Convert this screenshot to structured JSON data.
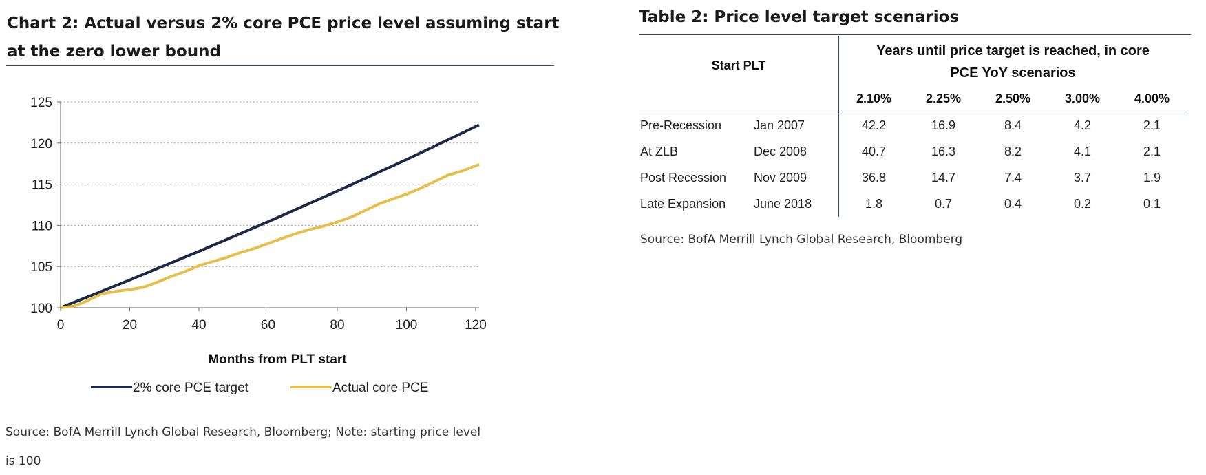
{
  "left_panel": {
    "title_line1": "Chart 2: Actual versus 2% core PCE price level assuming start",
    "title_line2": "at the zero lower bound",
    "source_line1": "Source: BofA Merrill Lynch Global Research, Bloomberg; Note: starting price level",
    "source_line2": "is 100"
  },
  "right_panel": {
    "title": "Table 2: Price level target scenarios",
    "header_start": "Start PLT",
    "header_group_line1": "Years until price target is reached, in core",
    "header_group_line2": "PCE YoY scenarios",
    "scenarios": [
      "2.10%",
      "2.25%",
      "2.50%",
      "3.00%",
      "4.00%"
    ],
    "rows": [
      {
        "name": "Pre-Recession",
        "date": "Jan 2007",
        "values": [
          "42.2",
          "16.9",
          "8.4",
          "4.2",
          "2.1"
        ]
      },
      {
        "name": "At ZLB",
        "date": "Dec 2008",
        "values": [
          "40.7",
          "16.3",
          "8.2",
          "4.1",
          "2.1"
        ]
      },
      {
        "name": "Post Recession",
        "date": "Nov 2009",
        "values": [
          "36.8",
          "14.7",
          "7.4",
          "3.7",
          "1.9"
        ]
      },
      {
        "name": "Late Expansion",
        "date": "June 2018",
        "values": [
          "1.8",
          "0.7",
          "0.4",
          "0.2",
          "0.1"
        ]
      }
    ],
    "source": "Source: BofA Merrill Lynch Global Research, Bloomberg"
  },
  "chart_data": {
    "type": "line",
    "title": "Chart 2: Actual versus 2% core PCE price level assuming start at the zero lower bound",
    "xlabel": "Months from PLT start",
    "ylabel": "",
    "xlim": [
      0,
      121
    ],
    "ylim": [
      100,
      125
    ],
    "xticks": [
      0,
      20,
      40,
      60,
      80,
      100,
      120
    ],
    "yticks": [
      100,
      105,
      110,
      115,
      120,
      125
    ],
    "grid": "horizontal dotted",
    "legend_position": "bottom",
    "series": [
      {
        "name": "2% core PCE target",
        "color": "#1b2a4a",
        "x": [
          0,
          20,
          40,
          60,
          80,
          100,
          121
        ],
        "y": [
          100.0,
          103.37,
          106.85,
          110.44,
          114.16,
          117.99,
          122.2
        ]
      },
      {
        "name": "Actual core PCE",
        "color": "#e8be4a",
        "x": [
          0,
          4,
          8,
          12,
          16,
          20,
          24,
          28,
          32,
          36,
          40,
          44,
          48,
          52,
          56,
          60,
          64,
          68,
          72,
          76,
          80,
          84,
          88,
          92,
          96,
          100,
          104,
          108,
          112,
          116,
          121
        ],
        "y": [
          100.0,
          100.2,
          100.9,
          101.7,
          102.0,
          102.2,
          102.5,
          103.1,
          103.8,
          104.4,
          105.1,
          105.6,
          106.1,
          106.7,
          107.2,
          107.8,
          108.4,
          109.0,
          109.5,
          109.9,
          110.4,
          111.0,
          111.8,
          112.6,
          113.2,
          113.8,
          114.5,
          115.3,
          116.1,
          116.6,
          117.4
        ]
      }
    ]
  }
}
